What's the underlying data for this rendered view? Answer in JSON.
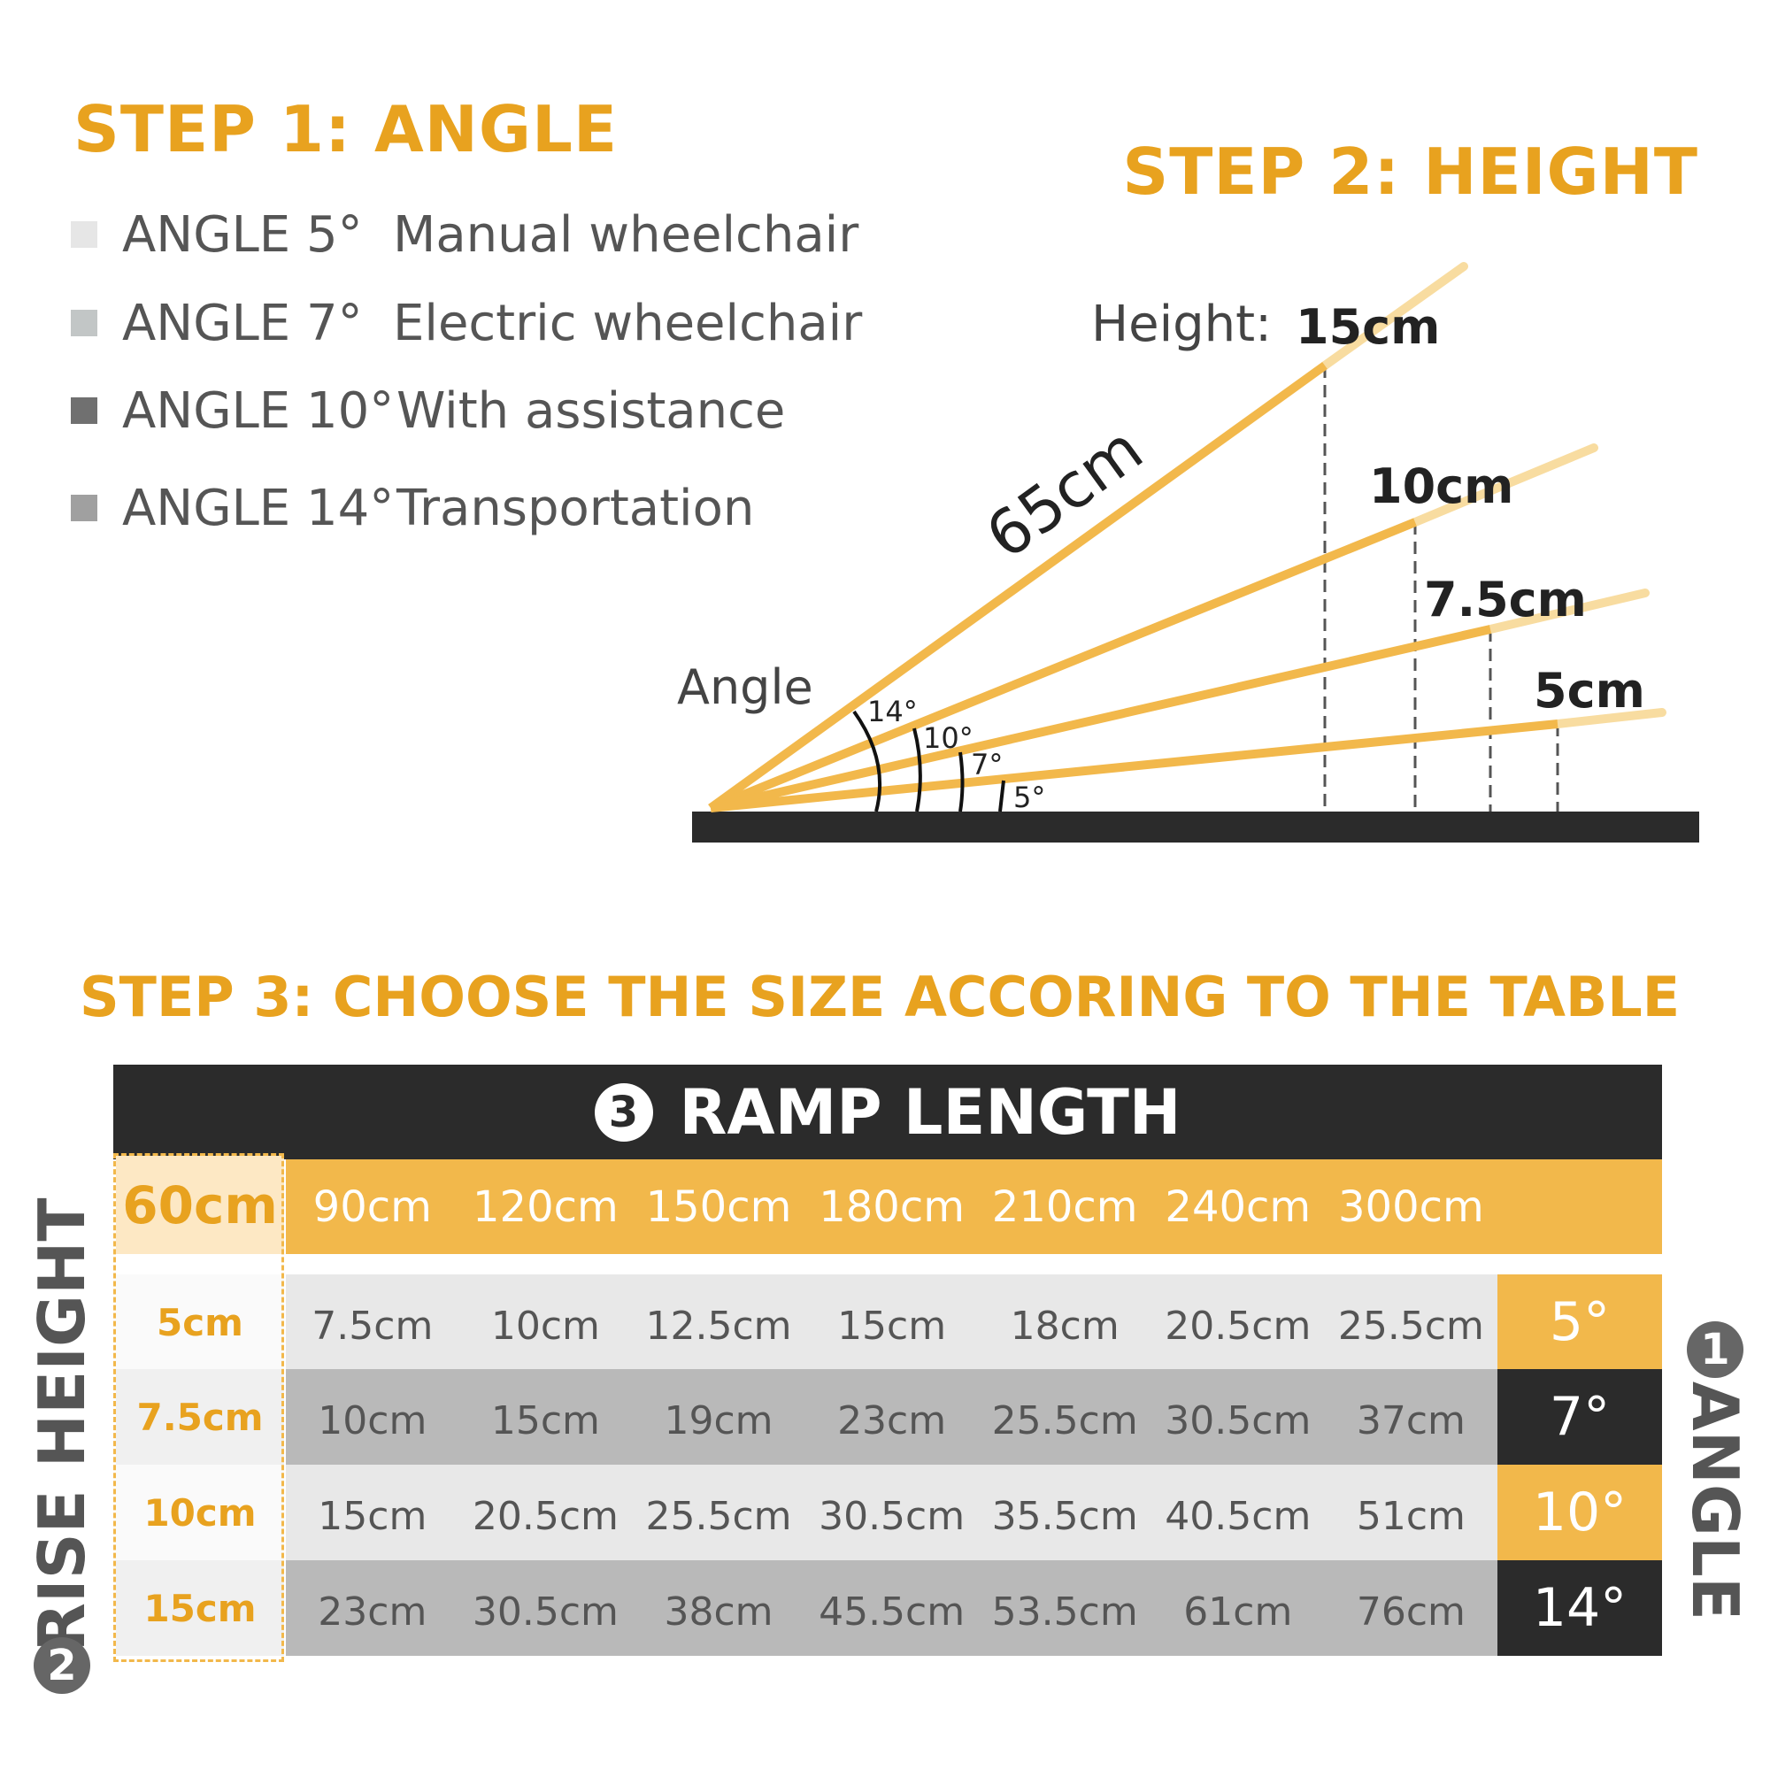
{
  "step1": {
    "title": "STEP 1: ANGLE",
    "items": [
      {
        "label": "ANGLE 5°",
        "desc": "Manual wheelchair",
        "color": "#e6e6e6"
      },
      {
        "label": "ANGLE 7°",
        "desc": "Electric wheelchair",
        "color": "#c2c6c6"
      },
      {
        "label": "ANGLE 10°",
        "desc": "With assistance",
        "color": "#707070"
      },
      {
        "label": "ANGLE 14°",
        "desc": "Transportation",
        "color": "#a0a0a0"
      }
    ]
  },
  "step2": {
    "title": "STEP 2: HEIGHT",
    "height_label": "Height:",
    "length_label": "65cm",
    "angle_label": "Angle",
    "heights": [
      "15cm",
      "10cm",
      "7.5cm",
      "5cm"
    ],
    "angles": [
      "14°",
      "10°",
      "7°",
      "5°"
    ]
  },
  "step3": {
    "title": "STEP 3: CHOOSE THE SIZE ACCORING TO THE TABLE",
    "ramp_length_badge": "3",
    "ramp_length_title": "RAMP LENGTH",
    "rise_badge": "2",
    "rise_title": "RISE HEIGHT",
    "angle_badge": "1",
    "angle_title": "ANGLE",
    "lengths": [
      "60cm",
      "90cm",
      "120cm",
      "150cm",
      "180cm",
      "210cm",
      "240cm",
      "300cm"
    ],
    "rows": [
      {
        "rise": "5cm",
        "values": [
          "7.5cm",
          "10cm",
          "12.5cm",
          "15cm",
          "18cm",
          "20.5cm",
          "25.5cm"
        ],
        "angle": "5°"
      },
      {
        "rise": "7.5cm",
        "values": [
          "10cm",
          "15cm",
          "19cm",
          "23cm",
          "25.5cm",
          "30.5cm",
          "37cm"
        ],
        "angle": "7°"
      },
      {
        "rise": "10cm",
        "values": [
          "15cm",
          "20.5cm",
          "25.5cm",
          "30.5cm",
          "35.5cm",
          "40.5cm",
          "51cm"
        ],
        "angle": "10°"
      },
      {
        "rise": "15cm",
        "values": [
          "23cm",
          "30.5cm",
          "38cm",
          "45.5cm",
          "53.5cm",
          "61cm",
          "76cm"
        ],
        "angle": "14°"
      }
    ]
  },
  "colors": {
    "accent": "#f2b84b",
    "title": "#e8a21f",
    "dark": "#2b2b2b"
  }
}
